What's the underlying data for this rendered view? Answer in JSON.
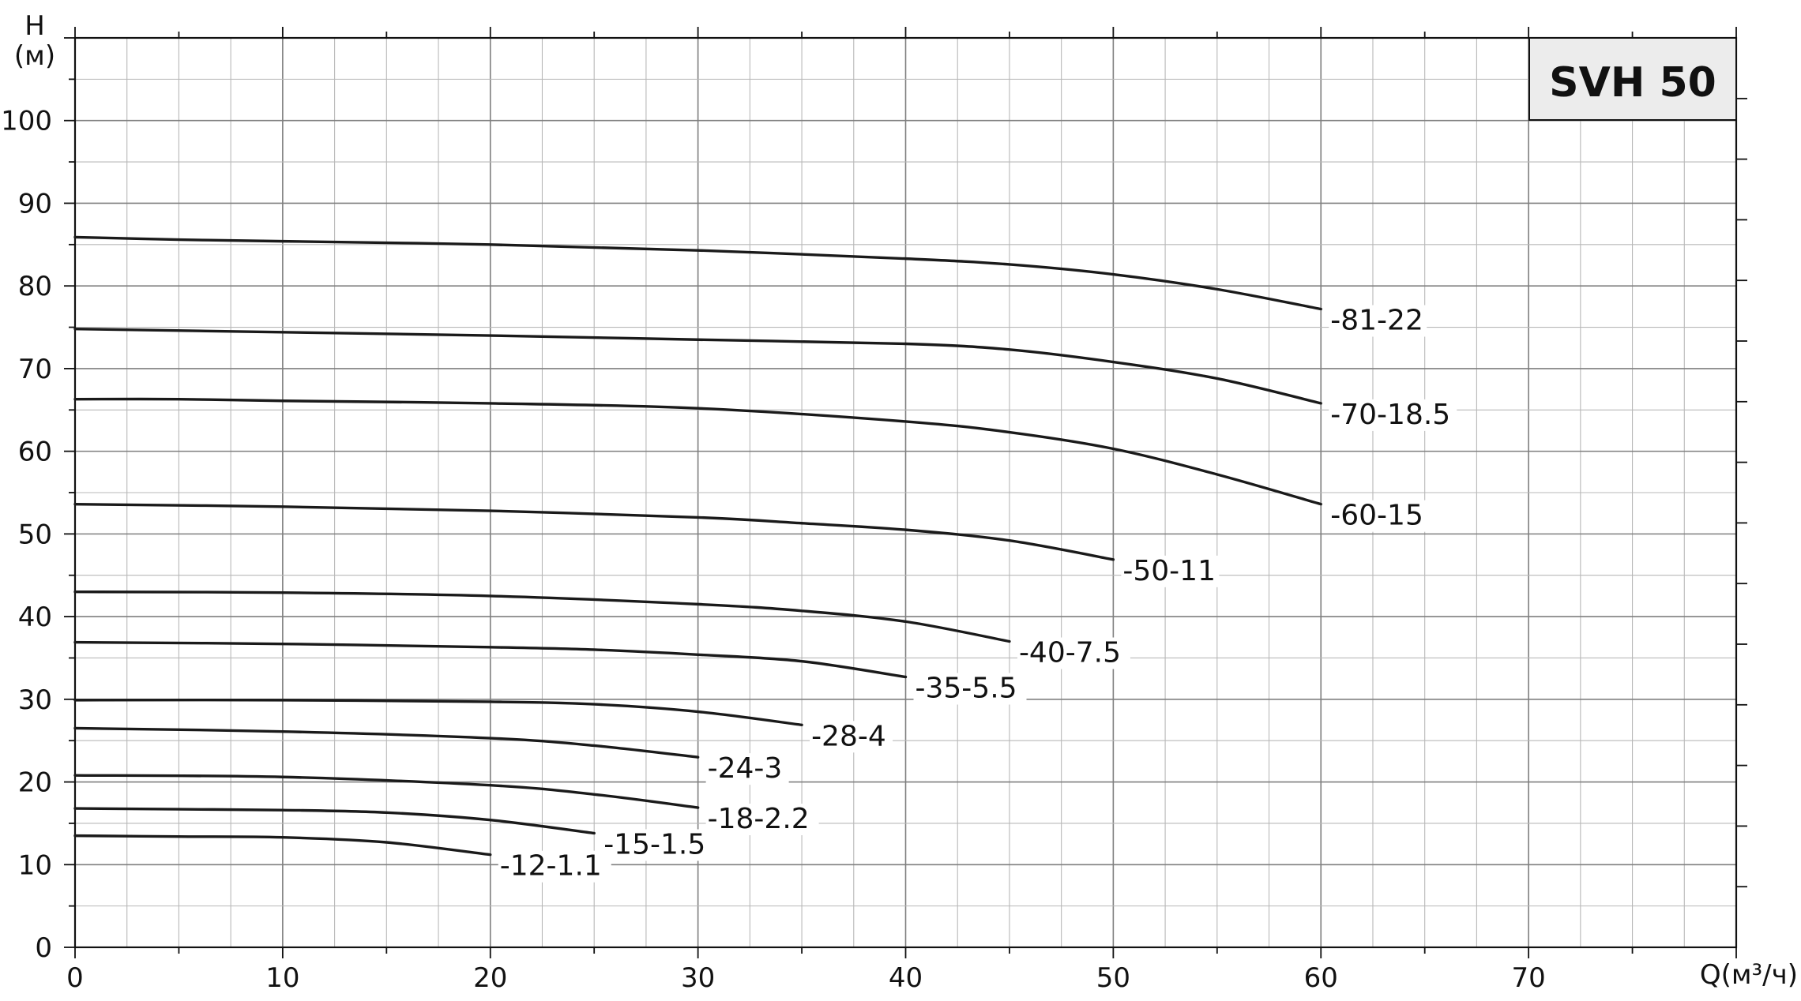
{
  "chart_data": {
    "type": "line",
    "title": "SVH 50",
    "xlabel": "Q(м³/ч)",
    "ylabel": "H",
    "ylabel_unit": "(м)",
    "xlim": [
      0,
      80
    ],
    "ylim": [
      0,
      110
    ],
    "x_ticks": [
      0,
      10,
      20,
      30,
      40,
      50,
      60,
      70
    ],
    "y_ticks": [
      0,
      10,
      20,
      30,
      40,
      50,
      60,
      70,
      80,
      90,
      100
    ],
    "grid": true,
    "series": [
      {
        "name": "-81-22",
        "points": [
          [
            0,
            85.9
          ],
          [
            5,
            85.6
          ],
          [
            10,
            85.4
          ],
          [
            20,
            85.0
          ],
          [
            30,
            84.3
          ],
          [
            40,
            83.3
          ],
          [
            45,
            82.6
          ],
          [
            50,
            81.4
          ],
          [
            55,
            79.6
          ],
          [
            60,
            77.2
          ]
        ]
      },
      {
        "name": "-70-18.5",
        "points": [
          [
            0,
            74.8
          ],
          [
            10,
            74.4
          ],
          [
            20,
            74.0
          ],
          [
            30,
            73.5
          ],
          [
            40,
            73.0
          ],
          [
            45,
            72.3
          ],
          [
            50,
            70.8
          ],
          [
            55,
            68.8
          ],
          [
            60,
            65.8
          ]
        ]
      },
      {
        "name": "-60-15",
        "points": [
          [
            0,
            66.3
          ],
          [
            5,
            66.3
          ],
          [
            10,
            66.1
          ],
          [
            20,
            65.8
          ],
          [
            30,
            65.2
          ],
          [
            40,
            63.6
          ],
          [
            45,
            62.3
          ],
          [
            50,
            60.3
          ],
          [
            55,
            57.2
          ],
          [
            60,
            53.6
          ]
        ]
      },
      {
        "name": "-50-11",
        "points": [
          [
            0,
            53.6
          ],
          [
            10,
            53.3
          ],
          [
            20,
            52.8
          ],
          [
            30,
            52.0
          ],
          [
            35,
            51.3
          ],
          [
            40,
            50.5
          ],
          [
            45,
            49.2
          ],
          [
            50,
            46.9
          ]
        ]
      },
      {
        "name": "-40-7.5",
        "points": [
          [
            0,
            43.0
          ],
          [
            10,
            42.9
          ],
          [
            20,
            42.5
          ],
          [
            30,
            41.5
          ],
          [
            35,
            40.7
          ],
          [
            40,
            39.4
          ],
          [
            45,
            37.0
          ]
        ]
      },
      {
        "name": "-35-5.5",
        "points": [
          [
            0,
            36.9
          ],
          [
            10,
            36.7
          ],
          [
            20,
            36.3
          ],
          [
            25,
            36.0
          ],
          [
            30,
            35.4
          ],
          [
            35,
            34.6
          ],
          [
            40,
            32.7
          ]
        ]
      },
      {
        "name": "-28-4",
        "points": [
          [
            0,
            29.9
          ],
          [
            10,
            29.9
          ],
          [
            20,
            29.7
          ],
          [
            25,
            29.4
          ],
          [
            30,
            28.5
          ],
          [
            35,
            26.9
          ]
        ]
      },
      {
        "name": "-24-3",
        "points": [
          [
            0,
            26.5
          ],
          [
            10,
            26.1
          ],
          [
            20,
            25.3
          ],
          [
            25,
            24.4
          ],
          [
            30,
            23.0
          ]
        ]
      },
      {
        "name": "-18-2.2",
        "points": [
          [
            0,
            20.8
          ],
          [
            10,
            20.6
          ],
          [
            20,
            19.6
          ],
          [
            25,
            18.5
          ],
          [
            30,
            16.9
          ]
        ]
      },
      {
        "name": "-15-1.5",
        "points": [
          [
            0,
            16.8
          ],
          [
            5,
            16.7
          ],
          [
            10,
            16.6
          ],
          [
            15,
            16.3
          ],
          [
            20,
            15.4
          ],
          [
            25,
            13.8
          ]
        ]
      },
      {
        "name": "-12-1.1",
        "points": [
          [
            0,
            13.5
          ],
          [
            5,
            13.4
          ],
          [
            10,
            13.3
          ],
          [
            15,
            12.7
          ],
          [
            20,
            11.2
          ]
        ]
      }
    ]
  }
}
